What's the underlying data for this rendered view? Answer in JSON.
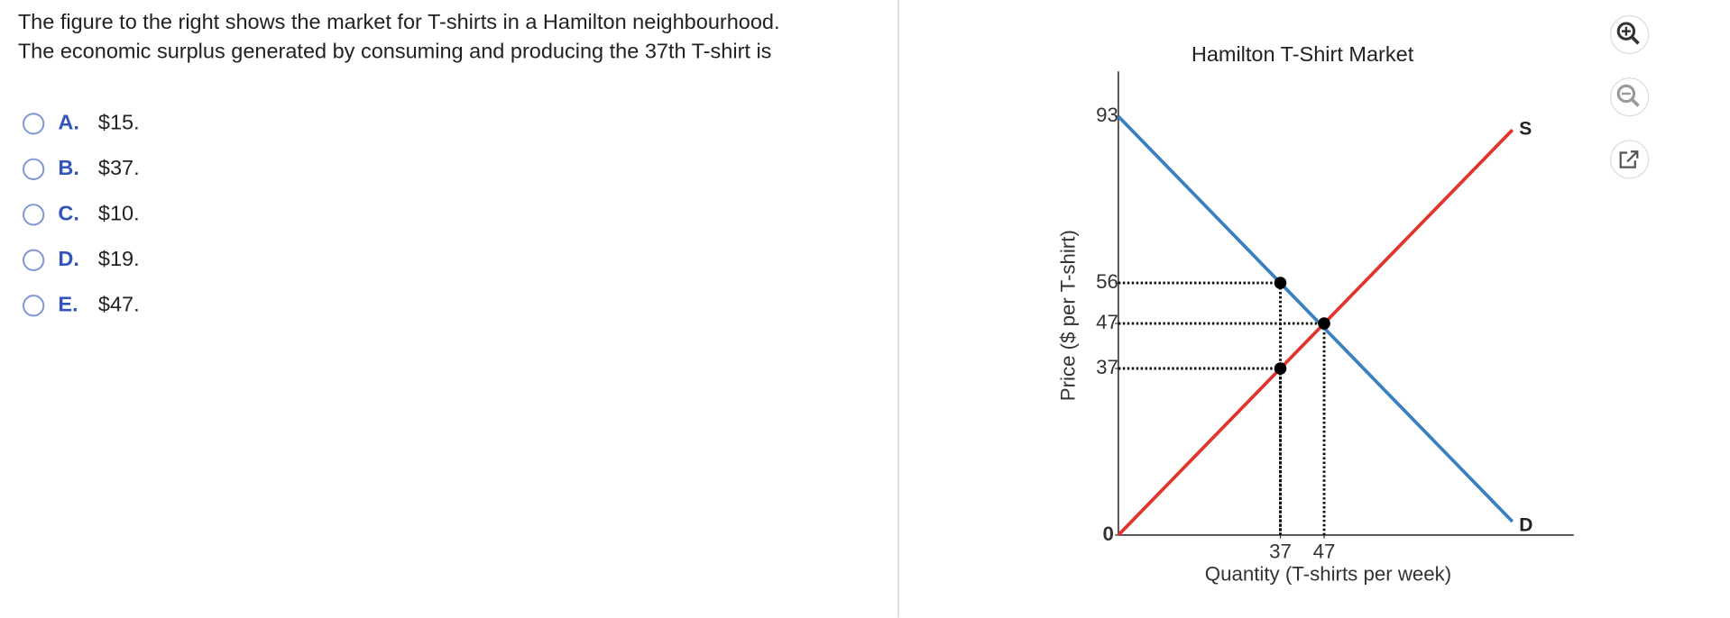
{
  "question": {
    "lines": [
      "The figure to the right shows the market for T-shirts in a Hamilton neighbourhood.",
      "The economic surplus generated by consuming and producing the 37th T-shirt is"
    ]
  },
  "options": [
    {
      "letter": "A.",
      "text": "$15."
    },
    {
      "letter": "B.",
      "text": "$37."
    },
    {
      "letter": "C.",
      "text": "$10."
    },
    {
      "letter": "D.",
      "text": "$19."
    },
    {
      "letter": "E.",
      "text": "$47."
    }
  ],
  "chart_data": {
    "type": "line",
    "title": "Hamilton T-Shirt Market",
    "x_label": "Quantity (T-shirts per week)",
    "y_label": "Price ($ per T-shirt)",
    "series": [
      {
        "name": "S",
        "color": "#e0342c",
        "x": [
          0,
          90
        ],
        "values": [
          0,
          90
        ]
      },
      {
        "name": "D",
        "color": "#3a80c0",
        "x": [
          0,
          90
        ],
        "values": [
          93,
          3
        ]
      }
    ],
    "points": {
      "x": [
        37,
        47,
        37
      ],
      "values": [
        56,
        47,
        37
      ]
    },
    "xlim": [
      0,
      104
    ],
    "ylim": [
      0,
      103
    ],
    "xticks": [
      37,
      47
    ],
    "yticks": [
      0,
      37,
      47,
      56,
      93
    ]
  }
}
